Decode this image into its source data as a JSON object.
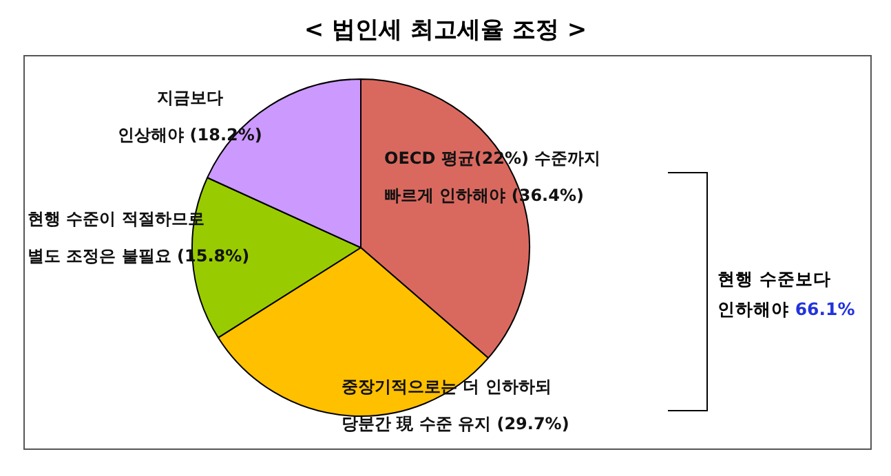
{
  "chart_data": {
    "type": "pie",
    "title": "< 법인세 최고세율 조정 >",
    "categories": [
      "OECD 평균(22%) 수준까지\n빠르게 인하해야",
      "중장기적으로는 더 인하하되\n당분간 現 수준 유지",
      "현행 수준이 적절하므로\n별도 조정은 불필요",
      "지금보다\n인상해야"
    ],
    "values": [
      36.4,
      29.7,
      15.8,
      18.2
    ],
    "value_labels": [
      "(36.4%)",
      "(29.7%)",
      "(15.8%)",
      "(18.2%)"
    ],
    "colors": [
      "#d9695f",
      "#ffc000",
      "#99cc00",
      "#cc99ff"
    ],
    "annotations": [
      "현행 수준보다\n인하해야 66.1%"
    ]
  }
}
